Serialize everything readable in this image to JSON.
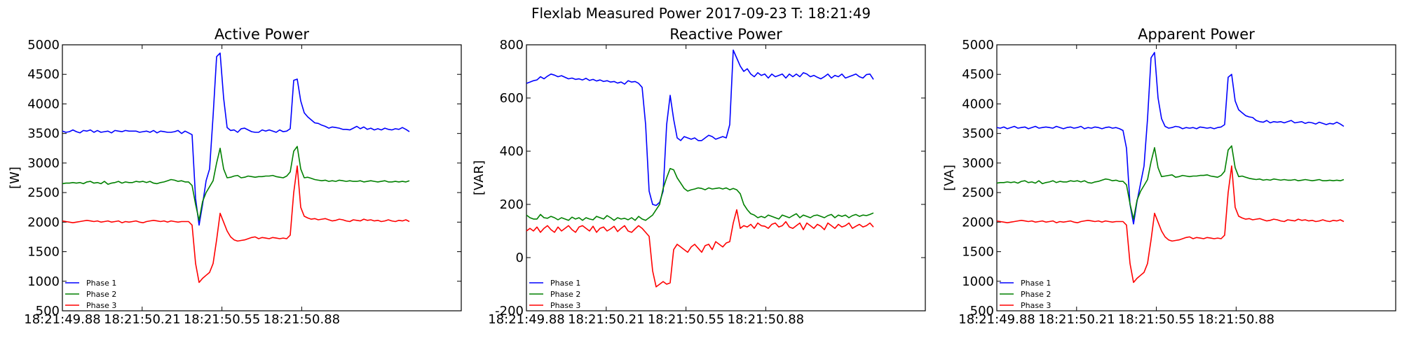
{
  "title": "Flexlab Measured Power 2017-09-23 T: 18:21:49",
  "colors": {
    "Phase 1": "#0000ff",
    "Phase 2": "#008000",
    "Phase 3": "#ff0000"
  },
  "chart_data": [
    {
      "type": "line",
      "title": "Active Power",
      "ylabel": "[W]",
      "xlim": [
        0,
        100
      ],
      "ylim": [
        500,
        5000
      ],
      "yticks": [
        500,
        1000,
        1500,
        2000,
        2500,
        3000,
        3500,
        4000,
        4500,
        5000
      ],
      "xticks": [
        {
          "pos": 0,
          "label": "18:21:49.88"
        },
        {
          "pos": 20,
          "label": "18:21:50.21"
        },
        {
          "pos": 40,
          "label": "18:21:50.55"
        },
        {
          "pos": 60,
          "label": "18:21:50.88"
        }
      ],
      "legend": "lower-left",
      "series": [
        {
          "name": "Phase 1",
          "values": [
            3540,
            3520,
            3530,
            3560,
            3530,
            3510,
            3550,
            3540,
            3560,
            3520,
            3550,
            3520,
            3530,
            3540,
            3510,
            3550,
            3540,
            3530,
            3550,
            3540,
            3540,
            3540,
            3520,
            3530,
            3540,
            3520,
            3550,
            3510,
            3540,
            3530,
            3520,
            3520,
            3530,
            3550,
            3500,
            3540,
            3510,
            3480,
            2400,
            1950,
            2300,
            2700,
            2900,
            3800,
            4800,
            4860,
            4100,
            3600,
            3550,
            3560,
            3520,
            3580,
            3590,
            3560,
            3530,
            3520,
            3520,
            3560,
            3540,
            3560,
            3540,
            3520,
            3560,
            3530,
            3540,
            3580,
            4400,
            4420,
            4050,
            3850,
            3780,
            3730,
            3680,
            3670,
            3640,
            3620,
            3590,
            3610,
            3600,
            3590,
            3570,
            3570,
            3560,
            3590,
            3620,
            3580,
            3610,
            3570,
            3590,
            3560,
            3580,
            3560,
            3590,
            3570,
            3560,
            3580,
            3570,
            3600,
            3570,
            3530
          ]
        },
        {
          "name": "Phase 2",
          "values": [
            2650,
            2660,
            2660,
            2670,
            2660,
            2670,
            2650,
            2680,
            2690,
            2660,
            2670,
            2650,
            2690,
            2640,
            2660,
            2670,
            2690,
            2660,
            2680,
            2670,
            2670,
            2690,
            2680,
            2690,
            2670,
            2690,
            2660,
            2650,
            2670,
            2680,
            2700,
            2720,
            2710,
            2690,
            2700,
            2680,
            2680,
            2620,
            2300,
            2030,
            2350,
            2500,
            2600,
            2700,
            3000,
            3250,
            2900,
            2750,
            2760,
            2780,
            2790,
            2750,
            2760,
            2780,
            2770,
            2760,
            2770,
            2770,
            2780,
            2780,
            2790,
            2770,
            2760,
            2750,
            2780,
            2850,
            3200,
            3280,
            2900,
            2750,
            2760,
            2740,
            2720,
            2710,
            2700,
            2710,
            2690,
            2700,
            2690,
            2710,
            2700,
            2690,
            2700,
            2690,
            2690,
            2700,
            2680,
            2690,
            2700,
            2690,
            2680,
            2690,
            2700,
            2680,
            2680,
            2690,
            2680,
            2690,
            2680,
            2700
          ]
        },
        {
          "name": "Phase 3",
          "values": [
            2020,
            2010,
            2000,
            1990,
            2000,
            2010,
            2020,
            2030,
            2020,
            2010,
            2020,
            2000,
            2010,
            2020,
            2000,
            2010,
            2020,
            1990,
            2010,
            2000,
            2010,
            2020,
            2000,
            1990,
            2010,
            2020,
            2030,
            2020,
            2010,
            2020,
            2000,
            2020,
            2010,
            2000,
            2010,
            2010,
            2010,
            1950,
            1300,
            980,
            1050,
            1100,
            1150,
            1300,
            1700,
            2150,
            2000,
            1850,
            1750,
            1700,
            1680,
            1690,
            1700,
            1720,
            1740,
            1750,
            1720,
            1740,
            1730,
            1720,
            1740,
            1730,
            1720,
            1730,
            1720,
            1780,
            2500,
            2950,
            2250,
            2100,
            2070,
            2050,
            2060,
            2040,
            2050,
            2060,
            2040,
            2020,
            2030,
            2050,
            2040,
            2020,
            2010,
            2040,
            2030,
            2020,
            2050,
            2030,
            2040,
            2020,
            2030,
            2010,
            2020,
            2040,
            2020,
            2010,
            2030,
            2020,
            2040,
            2010
          ]
        }
      ]
    },
    {
      "type": "line",
      "title": "Reactive Power",
      "ylabel": "[VAR]",
      "xlim": [
        0,
        100
      ],
      "ylim": [
        -200,
        800
      ],
      "yticks": [
        -200,
        0,
        200,
        400,
        600,
        800
      ],
      "xticks": [
        {
          "pos": 0,
          "label": "18:21:49.88"
        },
        {
          "pos": 20,
          "label": "18:21:50.21"
        },
        {
          "pos": 40,
          "label": "18:21:50.55"
        },
        {
          "pos": 60,
          "label": "18:21:50.88"
        }
      ],
      "legend": "lower-left",
      "series": [
        {
          "name": "Phase 1",
          "values": [
            655,
            660,
            665,
            668,
            680,
            672,
            682,
            690,
            686,
            680,
            684,
            678,
            672,
            675,
            670,
            672,
            668,
            674,
            666,
            670,
            664,
            668,
            662,
            665,
            660,
            662,
            656,
            660,
            652,
            665,
            660,
            662,
            655,
            640,
            500,
            250,
            200,
            196,
            208,
            250,
            500,
            610,
            520,
            450,
            440,
            455,
            450,
            445,
            450,
            440,
            440,
            450,
            460,
            455,
            445,
            450,
            455,
            450,
            500,
            780,
            750,
            720,
            700,
            710,
            690,
            680,
            695,
            685,
            690,
            675,
            690,
            680,
            685,
            690,
            675,
            690,
            680,
            690,
            680,
            695,
            690,
            680,
            685,
            678,
            672,
            680,
            690,
            675,
            685,
            680,
            690,
            675,
            680,
            685,
            690,
            680,
            675,
            688,
            690,
            670
          ]
        },
        {
          "name": "Phase 2",
          "values": [
            160,
            150,
            145,
            145,
            162,
            150,
            148,
            155,
            150,
            142,
            150,
            145,
            140,
            152,
            145,
            150,
            140,
            150,
            145,
            142,
            155,
            150,
            145,
            158,
            150,
            140,
            150,
            145,
            148,
            142,
            150,
            140,
            155,
            145,
            140,
            150,
            160,
            180,
            200,
            260,
            300,
            335,
            330,
            300,
            280,
            260,
            250,
            255,
            258,
            262,
            260,
            255,
            262,
            258,
            260,
            262,
            258,
            262,
            255,
            260,
            255,
            240,
            200,
            180,
            165,
            160,
            150,
            155,
            150,
            160,
            155,
            150,
            145,
            160,
            155,
            150,
            158,
            165,
            150,
            160,
            155,
            150,
            158,
            160,
            155,
            150,
            158,
            162,
            150,
            160,
            155,
            160,
            150,
            158,
            162,
            155,
            160,
            158,
            162,
            168
          ]
        },
        {
          "name": "Phase 3",
          "values": [
            100,
            110,
            100,
            115,
            95,
            110,
            120,
            105,
            95,
            115,
            100,
            110,
            120,
            105,
            95,
            115,
            120,
            110,
            100,
            118,
            95,
            110,
            115,
            100,
            108,
            118,
            98,
            110,
            120,
            100,
            95,
            108,
            120,
            110,
            95,
            80,
            -50,
            -110,
            -100,
            -90,
            -100,
            -95,
            30,
            50,
            40,
            30,
            20,
            40,
            50,
            35,
            20,
            45,
            50,
            30,
            60,
            50,
            40,
            55,
            60,
            130,
            180,
            110,
            120,
            115,
            125,
            110,
            130,
            120,
            118,
            110,
            125,
            130,
            115,
            120,
            135,
            115,
            110,
            120,
            130,
            105,
            130,
            120,
            110,
            125,
            118,
            105,
            130,
            120,
            110,
            125,
            115,
            120,
            130,
            110,
            118,
            125,
            115,
            120,
            130,
            115
          ]
        }
      ]
    },
    {
      "type": "line",
      "title": "Apparent Power",
      "ylabel": "[VA]",
      "xlim": [
        0,
        100
      ],
      "ylim": [
        500,
        5000
      ],
      "yticks": [
        500,
        1000,
        1500,
        2000,
        2500,
        3000,
        3500,
        4000,
        4500,
        5000
      ],
      "xticks": [
        {
          "pos": 0,
          "label": "18:21:49.88"
        },
        {
          "pos": 20,
          "label": "18:21:50.21"
        },
        {
          "pos": 40,
          "label": "18:21:50.55"
        },
        {
          "pos": 60,
          "label": "18:21:50.88"
        }
      ],
      "legend": "lower-left",
      "series": [
        {
          "name": "Phase 1",
          "values": [
            3600,
            3590,
            3610,
            3580,
            3600,
            3620,
            3590,
            3600,
            3610,
            3580,
            3600,
            3620,
            3590,
            3600,
            3610,
            3600,
            3590,
            3620,
            3600,
            3580,
            3600,
            3610,
            3590,
            3600,
            3620,
            3580,
            3600,
            3590,
            3610,
            3600,
            3580,
            3600,
            3610,
            3590,
            3600,
            3580,
            3550,
            3250,
            2300,
            1970,
            2350,
            2650,
            2950,
            3750,
            4780,
            4870,
            4100,
            3750,
            3620,
            3590,
            3600,
            3620,
            3610,
            3580,
            3600,
            3590,
            3600,
            3580,
            3610,
            3600,
            3590,
            3600,
            3580,
            3600,
            3610,
            3650,
            4450,
            4500,
            4050,
            3900,
            3850,
            3800,
            3780,
            3770,
            3720,
            3700,
            3690,
            3720,
            3680,
            3700,
            3690,
            3700,
            3680,
            3700,
            3720,
            3680,
            3690,
            3700,
            3670,
            3690,
            3680,
            3660,
            3690,
            3670,
            3650,
            3670,
            3660,
            3690,
            3660,
            3620
          ]
        },
        {
          "name": "Phase 2",
          "values": [
            2660,
            2670,
            2670,
            2680,
            2670,
            2680,
            2660,
            2690,
            2700,
            2670,
            2680,
            2660,
            2700,
            2650,
            2670,
            2680,
            2700,
            2670,
            2690,
            2680,
            2680,
            2700,
            2690,
            2700,
            2680,
            2700,
            2670,
            2660,
            2680,
            2690,
            2710,
            2730,
            2720,
            2700,
            2710,
            2690,
            2690,
            2630,
            2310,
            2050,
            2370,
            2520,
            2620,
            2720,
            3020,
            3260,
            2920,
            2770,
            2780,
            2790,
            2800,
            2760,
            2770,
            2790,
            2780,
            2770,
            2780,
            2780,
            2790,
            2790,
            2800,
            2780,
            2770,
            2760,
            2790,
            2860,
            3220,
            3290,
            2920,
            2770,
            2780,
            2760,
            2740,
            2730,
            2720,
            2730,
            2710,
            2720,
            2710,
            2730,
            2720,
            2710,
            2720,
            2710,
            2710,
            2720,
            2700,
            2710,
            2720,
            2710,
            2700,
            2710,
            2720,
            2700,
            2700,
            2710,
            2700,
            2710,
            2700,
            2720
          ]
        },
        {
          "name": "Phase 3",
          "values": [
            2020,
            2010,
            2000,
            1990,
            2000,
            2010,
            2020,
            2030,
            2020,
            2010,
            2020,
            2000,
            2010,
            2020,
            2000,
            2010,
            2020,
            1990,
            2010,
            2000,
            2010,
            2020,
            2000,
            1990,
            2010,
            2020,
            2030,
            2020,
            2010,
            2020,
            2000,
            2020,
            2010,
            2000,
            2010,
            2010,
            2010,
            1950,
            1300,
            980,
            1050,
            1100,
            1150,
            1300,
            1700,
            2150,
            2000,
            1850,
            1750,
            1700,
            1680,
            1690,
            1700,
            1720,
            1740,
            1750,
            1720,
            1740,
            1730,
            1720,
            1740,
            1730,
            1720,
            1730,
            1720,
            1780,
            2500,
            2950,
            2250,
            2100,
            2070,
            2050,
            2060,
            2040,
            2050,
            2060,
            2040,
            2020,
            2030,
            2050,
            2040,
            2020,
            2010,
            2040,
            2030,
            2020,
            2050,
            2030,
            2040,
            2020,
            2030,
            2010,
            2020,
            2040,
            2020,
            2010,
            2030,
            2020,
            2040,
            2010
          ]
        }
      ]
    }
  ]
}
